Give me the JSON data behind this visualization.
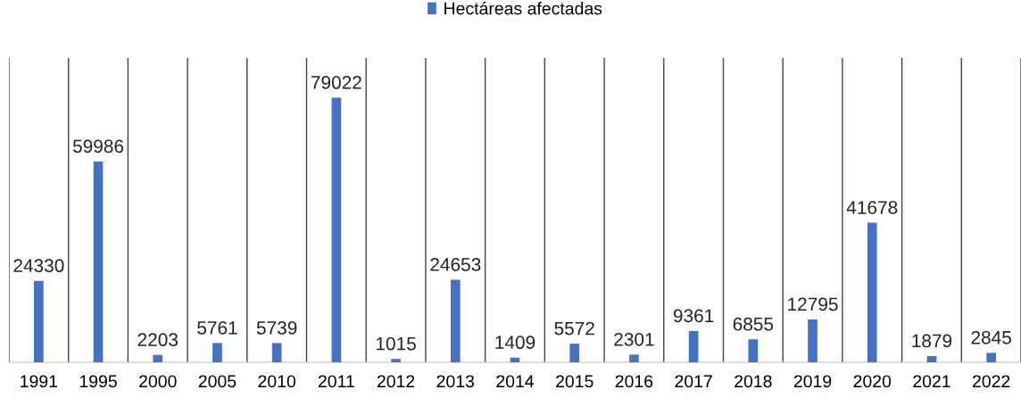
{
  "chart_data": {
    "type": "bar",
    "categories": [
      "1991",
      "1995",
      "2000",
      "2005",
      "2010",
      "2011",
      "2012",
      "2013",
      "2014",
      "2015",
      "2016",
      "2017",
      "2018",
      "2019",
      "2020",
      "2021",
      "2022"
    ],
    "series": [
      {
        "name": "Hectáreas afectadas",
        "color": "#4472c4",
        "values": [
          24330,
          59986,
          2203,
          5761,
          5739,
          79022,
          1015,
          24653,
          1409,
          5572,
          2301,
          9361,
          6855,
          12795,
          41678,
          1879,
          2845
        ]
      }
    ],
    "data_labels": true,
    "grid": "x",
    "legend": "top",
    "tick_labels": "x"
  }
}
